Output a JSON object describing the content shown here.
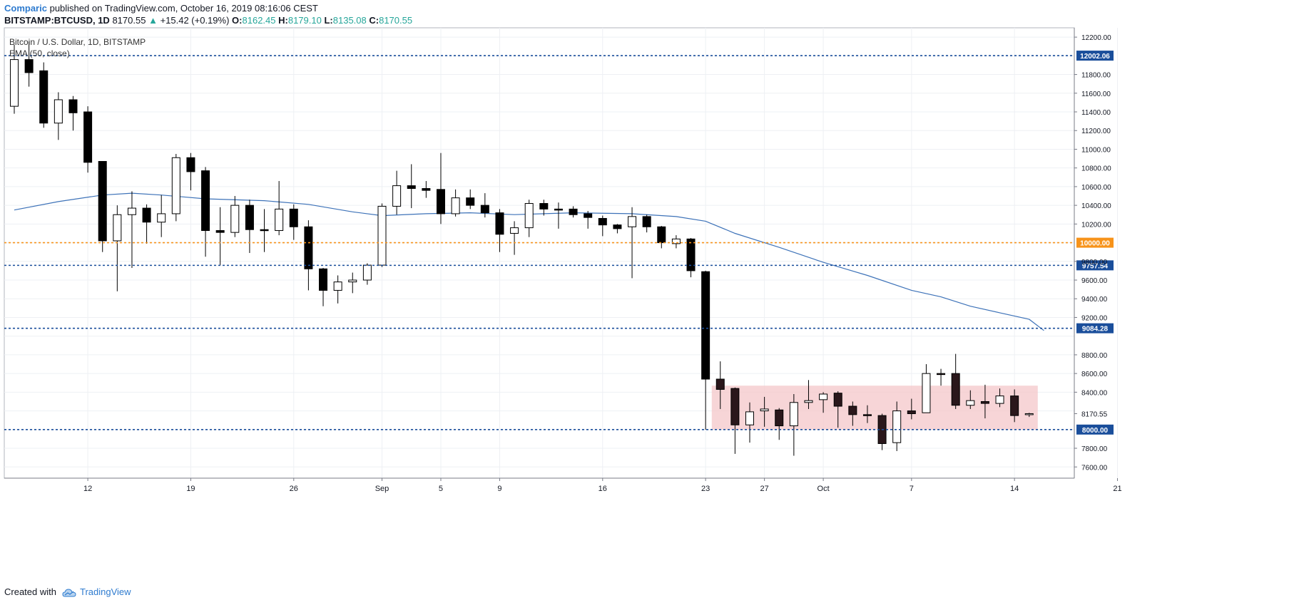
{
  "header": {
    "author": "Comparic",
    "published_text": "published on TradingView.com, October 16, 2019 08:16:06 CEST"
  },
  "quote": {
    "symbol": "BITSTAMP:BTCUSD, 1D",
    "last": "8170.55",
    "change": "+15.42 (+0.19%)",
    "o_label": "O:",
    "o_value": "8162.45",
    "h_label": "H:",
    "h_value": "8179.10",
    "l_label": "L:",
    "l_value": "8135.08",
    "c_label": "C:",
    "c_value": "8170.55"
  },
  "legend": {
    "title": "Bitcoin / U.S. Dollar, 1D, BITSTAMP",
    "indicator": "EMA (50, close)"
  },
  "footer": {
    "created_with": "Created with",
    "brand": "TradingView"
  },
  "colors": {
    "bull_fill": "#ffffff",
    "bear_fill": "#000000",
    "consolidation_bear": "#2a171b",
    "ema": "#3d72b8",
    "support_line": "#1a4e9b",
    "round_number_line": "#f7931a",
    "consolidation_zone": "#f4c7c9",
    "grid": "#eef0f4"
  },
  "chart_data": {
    "type": "candlestick",
    "ylim": [
      7480,
      12300
    ],
    "y_ticks": [
      12200,
      12000,
      11800,
      11600,
      11400,
      11200,
      11000,
      10800,
      10600,
      10400,
      10200,
      10000,
      9800,
      9600,
      9400,
      9200,
      9000,
      8800,
      8600,
      8400,
      8200,
      8000,
      7800,
      7600
    ],
    "y_tick_labels": [
      "12200.00",
      "",
      "11800.00",
      "11600.00",
      "11400.00",
      "11200.00",
      "11000.00",
      "10800.00",
      "10600.00",
      "10400.00",
      "10200.00",
      "",
      "9800.00",
      "9600.00",
      "9400.00",
      "9200.00",
      "",
      "8800.00",
      "8600.00",
      "8400.00",
      "",
      "",
      "7800.00",
      "7600.00"
    ],
    "x_ticks": [
      {
        "date": "2019-08-12",
        "label": "12"
      },
      {
        "date": "2019-08-19",
        "label": "19"
      },
      {
        "date": "2019-08-26",
        "label": "26"
      },
      {
        "date": "2019-09-01",
        "label": "Sep"
      },
      {
        "date": "2019-09-05",
        "label": "5"
      },
      {
        "date": "2019-09-09",
        "label": "9"
      },
      {
        "date": "2019-09-16",
        "label": "16"
      },
      {
        "date": "2019-09-23",
        "label": "23"
      },
      {
        "date": "2019-09-27",
        "label": "27"
      },
      {
        "date": "2019-10-01",
        "label": "Oct"
      },
      {
        "date": "2019-10-07",
        "label": "7"
      },
      {
        "date": "2019-10-14",
        "label": "14"
      },
      {
        "date": "2019-10-21",
        "label": "21"
      }
    ],
    "candles": [
      {
        "date": "2019-08-07",
        "o": 11460,
        "h": 12120,
        "l": 11380,
        "c": 11960
      },
      {
        "date": "2019-08-08",
        "o": 11960,
        "h": 12150,
        "l": 11670,
        "c": 11820
      },
      {
        "date": "2019-08-09",
        "o": 11840,
        "h": 11930,
        "l": 11230,
        "c": 11280
      },
      {
        "date": "2019-08-10",
        "o": 11280,
        "h": 11610,
        "l": 11100,
        "c": 11530
      },
      {
        "date": "2019-08-11",
        "o": 11530,
        "h": 11570,
        "l": 11200,
        "c": 11390
      },
      {
        "date": "2019-08-12",
        "o": 11400,
        "h": 11460,
        "l": 10750,
        "c": 10860
      },
      {
        "date": "2019-08-13",
        "o": 10870,
        "h": 10870,
        "l": 9900,
        "c": 10020
      },
      {
        "date": "2019-08-14",
        "o": 10020,
        "h": 10400,
        "l": 9480,
        "c": 10300
      },
      {
        "date": "2019-08-15",
        "o": 10300,
        "h": 10550,
        "l": 9730,
        "c": 10370
      },
      {
        "date": "2019-08-16",
        "o": 10370,
        "h": 10410,
        "l": 9990,
        "c": 10220
      },
      {
        "date": "2019-08-17",
        "o": 10220,
        "h": 10510,
        "l": 10060,
        "c": 10310
      },
      {
        "date": "2019-08-18",
        "o": 10310,
        "h": 10950,
        "l": 10230,
        "c": 10910
      },
      {
        "date": "2019-08-19",
        "o": 10910,
        "h": 10960,
        "l": 10560,
        "c": 10760
      },
      {
        "date": "2019-08-20",
        "o": 10770,
        "h": 10810,
        "l": 9850,
        "c": 10130
      },
      {
        "date": "2019-08-21",
        "o": 10130,
        "h": 10380,
        "l": 9760,
        "c": 10110
      },
      {
        "date": "2019-08-22",
        "o": 10110,
        "h": 10500,
        "l": 10060,
        "c": 10400
      },
      {
        "date": "2019-08-23",
        "o": 10400,
        "h": 10460,
        "l": 9890,
        "c": 10140
      },
      {
        "date": "2019-08-24",
        "o": 10140,
        "h": 10360,
        "l": 9900,
        "c": 10130
      },
      {
        "date": "2019-08-25",
        "o": 10130,
        "h": 10660,
        "l": 10080,
        "c": 10360
      },
      {
        "date": "2019-08-26",
        "o": 10360,
        "h": 10410,
        "l": 10030,
        "c": 10170
      },
      {
        "date": "2019-08-27",
        "o": 10170,
        "h": 10240,
        "l": 9490,
        "c": 9720
      },
      {
        "date": "2019-08-28",
        "o": 9720,
        "h": 9730,
        "l": 9320,
        "c": 9490
      },
      {
        "date": "2019-08-29",
        "o": 9490,
        "h": 9650,
        "l": 9350,
        "c": 9580
      },
      {
        "date": "2019-08-30",
        "o": 9580,
        "h": 9680,
        "l": 9460,
        "c": 9600
      },
      {
        "date": "2019-08-31",
        "o": 9600,
        "h": 9780,
        "l": 9550,
        "c": 9760
      },
      {
        "date": "2019-09-01",
        "o": 9760,
        "h": 10420,
        "l": 9740,
        "c": 10390
      },
      {
        "date": "2019-09-02",
        "o": 10390,
        "h": 10770,
        "l": 10300,
        "c": 10610
      },
      {
        "date": "2019-09-03",
        "o": 10610,
        "h": 10840,
        "l": 10370,
        "c": 10580
      },
      {
        "date": "2019-09-04",
        "o": 10580,
        "h": 10660,
        "l": 10480,
        "c": 10560
      },
      {
        "date": "2019-09-05",
        "o": 10570,
        "h": 10960,
        "l": 10200,
        "c": 10310
      },
      {
        "date": "2019-09-06",
        "o": 10310,
        "h": 10570,
        "l": 10280,
        "c": 10480
      },
      {
        "date": "2019-09-07",
        "o": 10480,
        "h": 10570,
        "l": 10360,
        "c": 10400
      },
      {
        "date": "2019-09-08",
        "o": 10400,
        "h": 10530,
        "l": 10270,
        "c": 10320
      },
      {
        "date": "2019-09-09",
        "o": 10320,
        "h": 10360,
        "l": 9900,
        "c": 10090
      },
      {
        "date": "2019-09-10",
        "o": 10100,
        "h": 10230,
        "l": 9870,
        "c": 10160
      },
      {
        "date": "2019-09-11",
        "o": 10160,
        "h": 10460,
        "l": 10060,
        "c": 10420
      },
      {
        "date": "2019-09-12",
        "o": 10420,
        "h": 10460,
        "l": 10290,
        "c": 10360
      },
      {
        "date": "2019-09-13",
        "o": 10360,
        "h": 10430,
        "l": 10150,
        "c": 10350
      },
      {
        "date": "2019-09-14",
        "o": 10360,
        "h": 10390,
        "l": 10270,
        "c": 10300
      },
      {
        "date": "2019-09-15",
        "o": 10310,
        "h": 10340,
        "l": 10150,
        "c": 10270
      },
      {
        "date": "2019-09-16",
        "o": 10260,
        "h": 10290,
        "l": 10070,
        "c": 10190
      },
      {
        "date": "2019-09-17",
        "o": 10190,
        "h": 10200,
        "l": 10100,
        "c": 10150
      },
      {
        "date": "2019-09-18",
        "o": 10170,
        "h": 10380,
        "l": 9620,
        "c": 10280
      },
      {
        "date": "2019-09-19",
        "o": 10280,
        "h": 10300,
        "l": 10110,
        "c": 10170
      },
      {
        "date": "2019-09-20",
        "o": 10170,
        "h": 10180,
        "l": 9940,
        "c": 10000
      },
      {
        "date": "2019-09-21",
        "o": 9990,
        "h": 10080,
        "l": 9940,
        "c": 10040
      },
      {
        "date": "2019-09-22",
        "o": 10040,
        "h": 10050,
        "l": 9630,
        "c": 9700
      },
      {
        "date": "2019-09-23",
        "o": 9690,
        "h": 9700,
        "l": 8000,
        "c": 8540
      },
      {
        "date": "2019-09-24",
        "o": 8540,
        "h": 8730,
        "l": 8220,
        "c": 8430
      },
      {
        "date": "2019-09-25",
        "o": 8440,
        "h": 8450,
        "l": 7740,
        "c": 8050
      },
      {
        "date": "2019-09-26",
        "o": 8050,
        "h": 8290,
        "l": 7860,
        "c": 8190
      },
      {
        "date": "2019-09-27",
        "o": 8200,
        "h": 8350,
        "l": 8030,
        "c": 8220
      },
      {
        "date": "2019-09-28",
        "o": 8210,
        "h": 8230,
        "l": 7890,
        "c": 8040
      },
      {
        "date": "2019-09-29",
        "o": 8040,
        "h": 8380,
        "l": 7720,
        "c": 8290
      },
      {
        "date": "2019-09-30",
        "o": 8290,
        "h": 8530,
        "l": 8220,
        "c": 8310
      },
      {
        "date": "2019-10-01",
        "o": 8320,
        "h": 8400,
        "l": 8180,
        "c": 8380
      },
      {
        "date": "2019-10-02",
        "o": 8390,
        "h": 8410,
        "l": 8020,
        "c": 8250
      },
      {
        "date": "2019-10-03",
        "o": 8250,
        "h": 8300,
        "l": 8040,
        "c": 8160
      },
      {
        "date": "2019-10-04",
        "o": 8160,
        "h": 8260,
        "l": 8070,
        "c": 8150
      },
      {
        "date": "2019-10-05",
        "o": 8150,
        "h": 8170,
        "l": 7780,
        "c": 7850
      },
      {
        "date": "2019-10-06",
        "o": 7860,
        "h": 8300,
        "l": 7770,
        "c": 8200
      },
      {
        "date": "2019-10-07",
        "o": 8200,
        "h": 8330,
        "l": 8110,
        "c": 8170
      },
      {
        "date": "2019-10-08",
        "o": 8180,
        "h": 8700,
        "l": 8180,
        "c": 8600
      },
      {
        "date": "2019-10-09",
        "o": 8600,
        "h": 8650,
        "l": 8470,
        "c": 8590
      },
      {
        "date": "2019-10-10",
        "o": 8600,
        "h": 8810,
        "l": 8220,
        "c": 8260
      },
      {
        "date": "2019-10-11",
        "o": 8260,
        "h": 8420,
        "l": 8220,
        "c": 8310
      },
      {
        "date": "2019-10-12",
        "o": 8300,
        "h": 8480,
        "l": 8120,
        "c": 8280
      },
      {
        "date": "2019-10-13",
        "o": 8280,
        "h": 8440,
        "l": 8240,
        "c": 8360
      },
      {
        "date": "2019-10-14",
        "o": 8360,
        "h": 8430,
        "l": 8080,
        "c": 8150
      },
      {
        "date": "2019-10-15",
        "o": 8162.45,
        "h": 8179.1,
        "l": 8135.08,
        "c": 8170.55
      }
    ],
    "ema": {
      "name": "EMA (50, close)",
      "points": [
        {
          "date": "2019-08-07",
          "v": 10350
        },
        {
          "date": "2019-08-10",
          "v": 10440
        },
        {
          "date": "2019-08-13",
          "v": 10510
        },
        {
          "date": "2019-08-15",
          "v": 10530
        },
        {
          "date": "2019-08-17",
          "v": 10510
        },
        {
          "date": "2019-08-20",
          "v": 10470
        },
        {
          "date": "2019-08-24",
          "v": 10450
        },
        {
          "date": "2019-08-27",
          "v": 10410
        },
        {
          "date": "2019-08-30",
          "v": 10330
        },
        {
          "date": "2019-09-01",
          "v": 10290
        },
        {
          "date": "2019-09-04",
          "v": 10310
        },
        {
          "date": "2019-09-07",
          "v": 10320
        },
        {
          "date": "2019-09-10",
          "v": 10300
        },
        {
          "date": "2019-09-14",
          "v": 10320
        },
        {
          "date": "2019-09-18",
          "v": 10310
        },
        {
          "date": "2019-09-21",
          "v": 10280
        },
        {
          "date": "2019-09-23",
          "v": 10230
        },
        {
          "date": "2019-09-25",
          "v": 10100
        },
        {
          "date": "2019-09-28",
          "v": 9950
        },
        {
          "date": "2019-10-01",
          "v": 9790
        },
        {
          "date": "2019-10-04",
          "v": 9650
        },
        {
          "date": "2019-10-07",
          "v": 9490
        },
        {
          "date": "2019-10-09",
          "v": 9420
        },
        {
          "date": "2019-10-11",
          "v": 9320
        },
        {
          "date": "2019-10-13",
          "v": 9250
        },
        {
          "date": "2019-10-15",
          "v": 9180
        },
        {
          "date": "2019-10-16",
          "v": 9060
        }
      ]
    },
    "horizontal_lines": [
      {
        "value": 12002.06,
        "label": "12002.06",
        "style": "support"
      },
      {
        "value": 10000.0,
        "label": "10000.00",
        "style": "round"
      },
      {
        "value": 9757.54,
        "label": "9757.54",
        "style": "support"
      },
      {
        "value": 9084.28,
        "label": "9084.28",
        "style": "support"
      },
      {
        "value": 8000.0,
        "label": "8000.00",
        "style": "support"
      }
    ],
    "price_label": {
      "value": 8170.55,
      "label": "8170.55"
    },
    "zone": {
      "from_date": "2019-09-24",
      "to_date": "2019-10-15",
      "low": 8000,
      "high": 8470
    }
  }
}
